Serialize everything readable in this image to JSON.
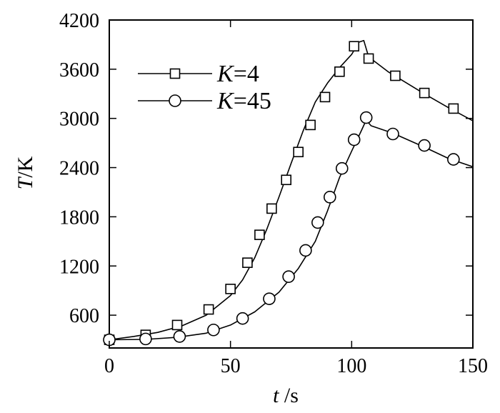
{
  "chart_data": {
    "type": "line",
    "title": "",
    "xlabel": {
      "var": "t",
      "unit": " /s"
    },
    "ylabel": {
      "var": "T",
      "unit": "/K"
    },
    "xlim": [
      0,
      150
    ],
    "ylim": [
      200,
      4200
    ],
    "xticks": [
      0,
      50,
      100,
      150
    ],
    "yticks": [
      600,
      1200,
      1800,
      2400,
      3000,
      3600,
      4200
    ],
    "grid": false,
    "legend_position": "top-left",
    "series": [
      {
        "name": "K=4",
        "name_var": "K",
        "name_rest": "=4",
        "marker": "square",
        "curve": [
          [
            0,
            300
          ],
          [
            10,
            340
          ],
          [
            20,
            390
          ],
          [
            30,
            470
          ],
          [
            40,
            600
          ],
          [
            50,
            840
          ],
          [
            55,
            1030
          ],
          [
            60,
            1300
          ],
          [
            65,
            1650
          ],
          [
            70,
            2040
          ],
          [
            75,
            2450
          ],
          [
            80,
            2850
          ],
          [
            85,
            3200
          ],
          [
            90,
            3430
          ],
          [
            95,
            3620
          ],
          [
            100,
            3780
          ],
          [
            103,
            3930
          ],
          [
            105,
            3950
          ],
          [
            107,
            3750
          ],
          [
            115,
            3570
          ],
          [
            130,
            3300
          ],
          [
            140,
            3130
          ],
          [
            150,
            2970
          ]
        ],
        "markers": [
          [
            0,
            300
          ],
          [
            15,
            360
          ],
          [
            28,
            480
          ],
          [
            41,
            670
          ],
          [
            50,
            920
          ],
          [
            57,
            1240
          ],
          [
            62,
            1580
          ],
          [
            67,
            1900
          ],
          [
            73,
            2250
          ],
          [
            78,
            2590
          ],
          [
            83,
            2920
          ],
          [
            89,
            3260
          ],
          [
            95,
            3570
          ],
          [
            101,
            3880
          ],
          [
            107,
            3730
          ],
          [
            118,
            3520
          ],
          [
            130,
            3310
          ],
          [
            142,
            3120
          ]
        ]
      },
      {
        "name": "K=45",
        "name_var": "K",
        "name_rest": "=45",
        "marker": "circle",
        "curve": [
          [
            0,
            300
          ],
          [
            15,
            305
          ],
          [
            28,
            330
          ],
          [
            40,
            380
          ],
          [
            50,
            480
          ],
          [
            60,
            640
          ],
          [
            70,
            880
          ],
          [
            78,
            1170
          ],
          [
            85,
            1500
          ],
          [
            90,
            1870
          ],
          [
            95,
            2280
          ],
          [
            100,
            2600
          ],
          [
            104,
            2850
          ],
          [
            106,
            2980
          ],
          [
            108,
            2910
          ],
          [
            117,
            2820
          ],
          [
            130,
            2650
          ],
          [
            140,
            2510
          ],
          [
            150,
            2410
          ]
        ],
        "markers": [
          [
            0,
            300
          ],
          [
            15,
            310
          ],
          [
            29,
            340
          ],
          [
            43,
            420
          ],
          [
            55,
            560
          ],
          [
            66,
            800
          ],
          [
            74,
            1070
          ],
          [
            81,
            1390
          ],
          [
            86,
            1730
          ],
          [
            91,
            2040
          ],
          [
            96,
            2390
          ],
          [
            101,
            2740
          ],
          [
            106,
            3010
          ],
          [
            117,
            2810
          ],
          [
            130,
            2670
          ],
          [
            142,
            2500
          ]
        ]
      }
    ]
  }
}
